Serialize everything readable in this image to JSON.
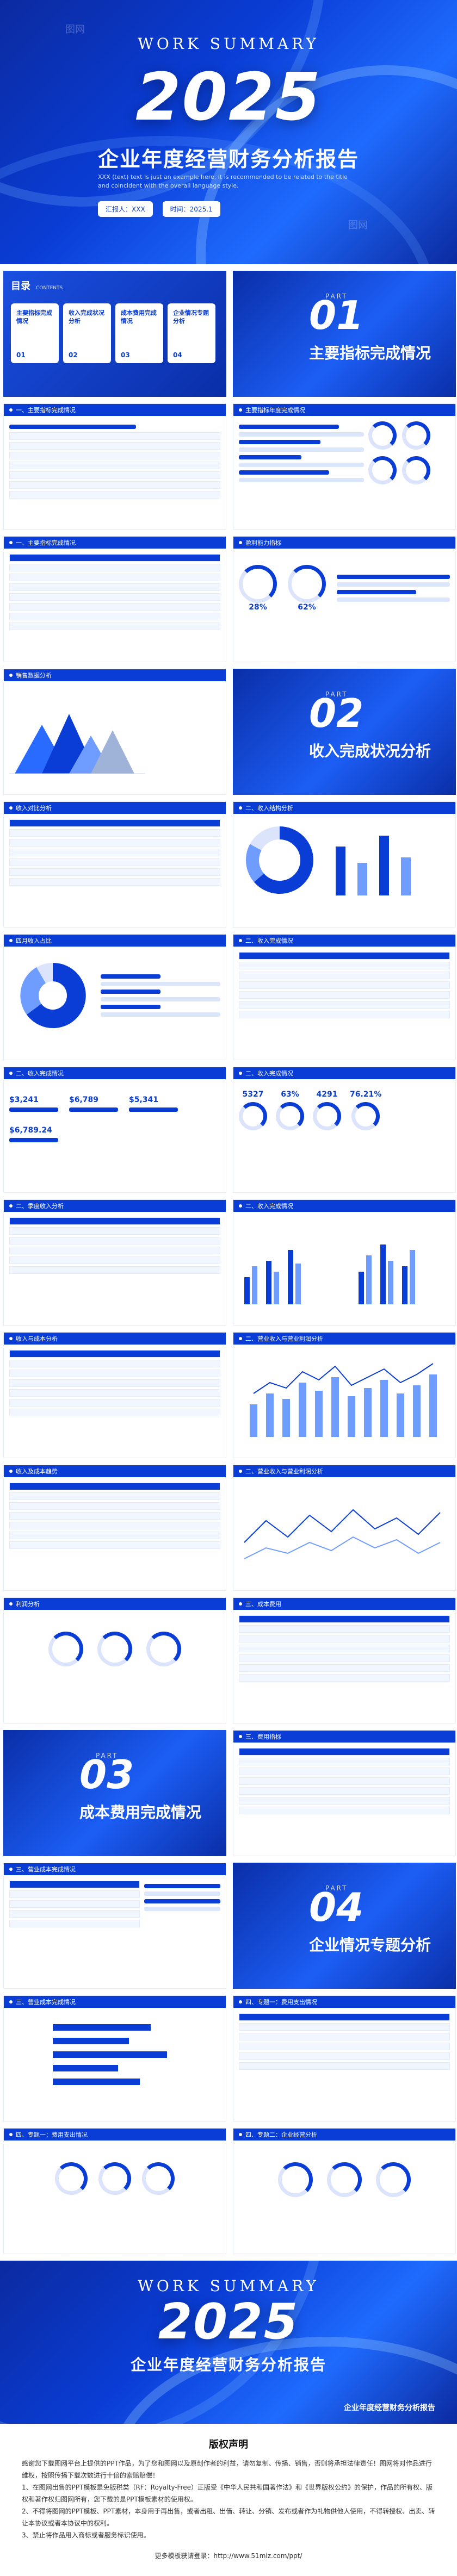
{
  "cover": {
    "kicker": "WORK SUMMARY",
    "year": "2025",
    "title": "企业年度经营财务分析报告",
    "subtitle": "XXX (text) text is just an example here, it is recommended to be related to the title and coincident with the overall language style.",
    "reporter": "汇报人：XXX",
    "date": "时间：2025.1",
    "watermark": "图网"
  },
  "toc": {
    "label": "目录",
    "label_en": "CONTENTS",
    "items": [
      {
        "title": "主要指标完成情况",
        "num": "01"
      },
      {
        "title": "收入完成状况分析",
        "num": "02"
      },
      {
        "title": "成本费用完成情况",
        "num": "03"
      },
      {
        "title": "企业情况专题分析",
        "num": "04"
      }
    ]
  },
  "sections": [
    {
      "part": "PART",
      "num": "01",
      "title": "主要指标完成情况"
    },
    {
      "part": "PART",
      "num": "02",
      "title": "收入完成状况分析"
    },
    {
      "part": "PART",
      "num": "03",
      "title": "成本费用完成情况"
    },
    {
      "part": "PART",
      "num": "04",
      "title": "企业情况专题分析"
    }
  ],
  "slides": [
    {
      "bar": "一、主要指标完成情况"
    },
    {
      "bar": "主要指标年度完成情况"
    },
    {
      "bar": "一、主要指标完成情况"
    },
    {
      "bar": "盈利能力指标"
    },
    {
      "bar": "销售数据分析"
    },
    {
      "bar": "收入对比分析"
    },
    {
      "bar": "二、收入结构分析"
    },
    {
      "bar": "四月收入占比"
    },
    {
      "bar": "二、收入完成情况"
    },
    {
      "bar": "二、收入完成情况"
    },
    {
      "bar": "二、收入完成情况"
    },
    {
      "bar": "二、季度收入分析"
    },
    {
      "bar": "二、收入完成情况"
    },
    {
      "bar": "收入与成本分析"
    },
    {
      "bar": "二、营业收入与营业利润分析"
    },
    {
      "bar": "收入及成本趋势"
    },
    {
      "bar": "二、营业收入与营业利润分析"
    },
    {
      "bar": "利润分析"
    },
    {
      "bar": "三、成本费用"
    },
    {
      "bar": "三、费用指标"
    },
    {
      "bar": "三、营业成本完成情况"
    },
    {
      "bar": "三、营业成本完成情况"
    },
    {
      "bar": "四、专题一：费用支出情况"
    },
    {
      "bar": "四、专题一：费用支出情况"
    },
    {
      "bar": "四、专题二：企业经营分析"
    }
  ],
  "kpis": {
    "ring1": "28%",
    "ring2": "62%",
    "v1": "$3,241",
    "v2": "$6,789",
    "v3": "5327",
    "v4": "63%",
    "v5": "4291",
    "v6": "76.21%",
    "v7": "$5,341",
    "v8": "$6,789.24"
  },
  "ending": {
    "kicker": "WORK SUMMARY",
    "year": "2025",
    "title": "企业年度经营财务分析报告",
    "badge": "企业年度经营财务分析报告"
  },
  "copyright": {
    "title": "版权声明",
    "paragraphs": [
      "感谢您下载图网平台上提供的PPT作品，为了您和图网以及原创作者的利益，请勿复制、传播、销售，否则将承担法律责任！图网将对作品进行维权，按照传播下载次数进行十倍的索赔赔偿！",
      "1、在图网出售的PPT模板是免版税类（RF：Royalty-Free）正版受《中华人民共和国著作法》和《世界版权公约》的保护，作品的所有权、版权和著作权归图网所有，您下载的是PPT模板素材的使用权。",
      "2、不得将图网的PPT模板、PPT素材，本身用于再出售，或者出租、出借、转让、分销、发布或者作为礼物供他人使用，不得转授权、出卖、转让本协议或者本协议中的权利。",
      "3、禁止将作品用入商标或者服务标识使用。"
    ],
    "link": "更多模板获请登录：http://www.51miz.com/ppt/"
  }
}
